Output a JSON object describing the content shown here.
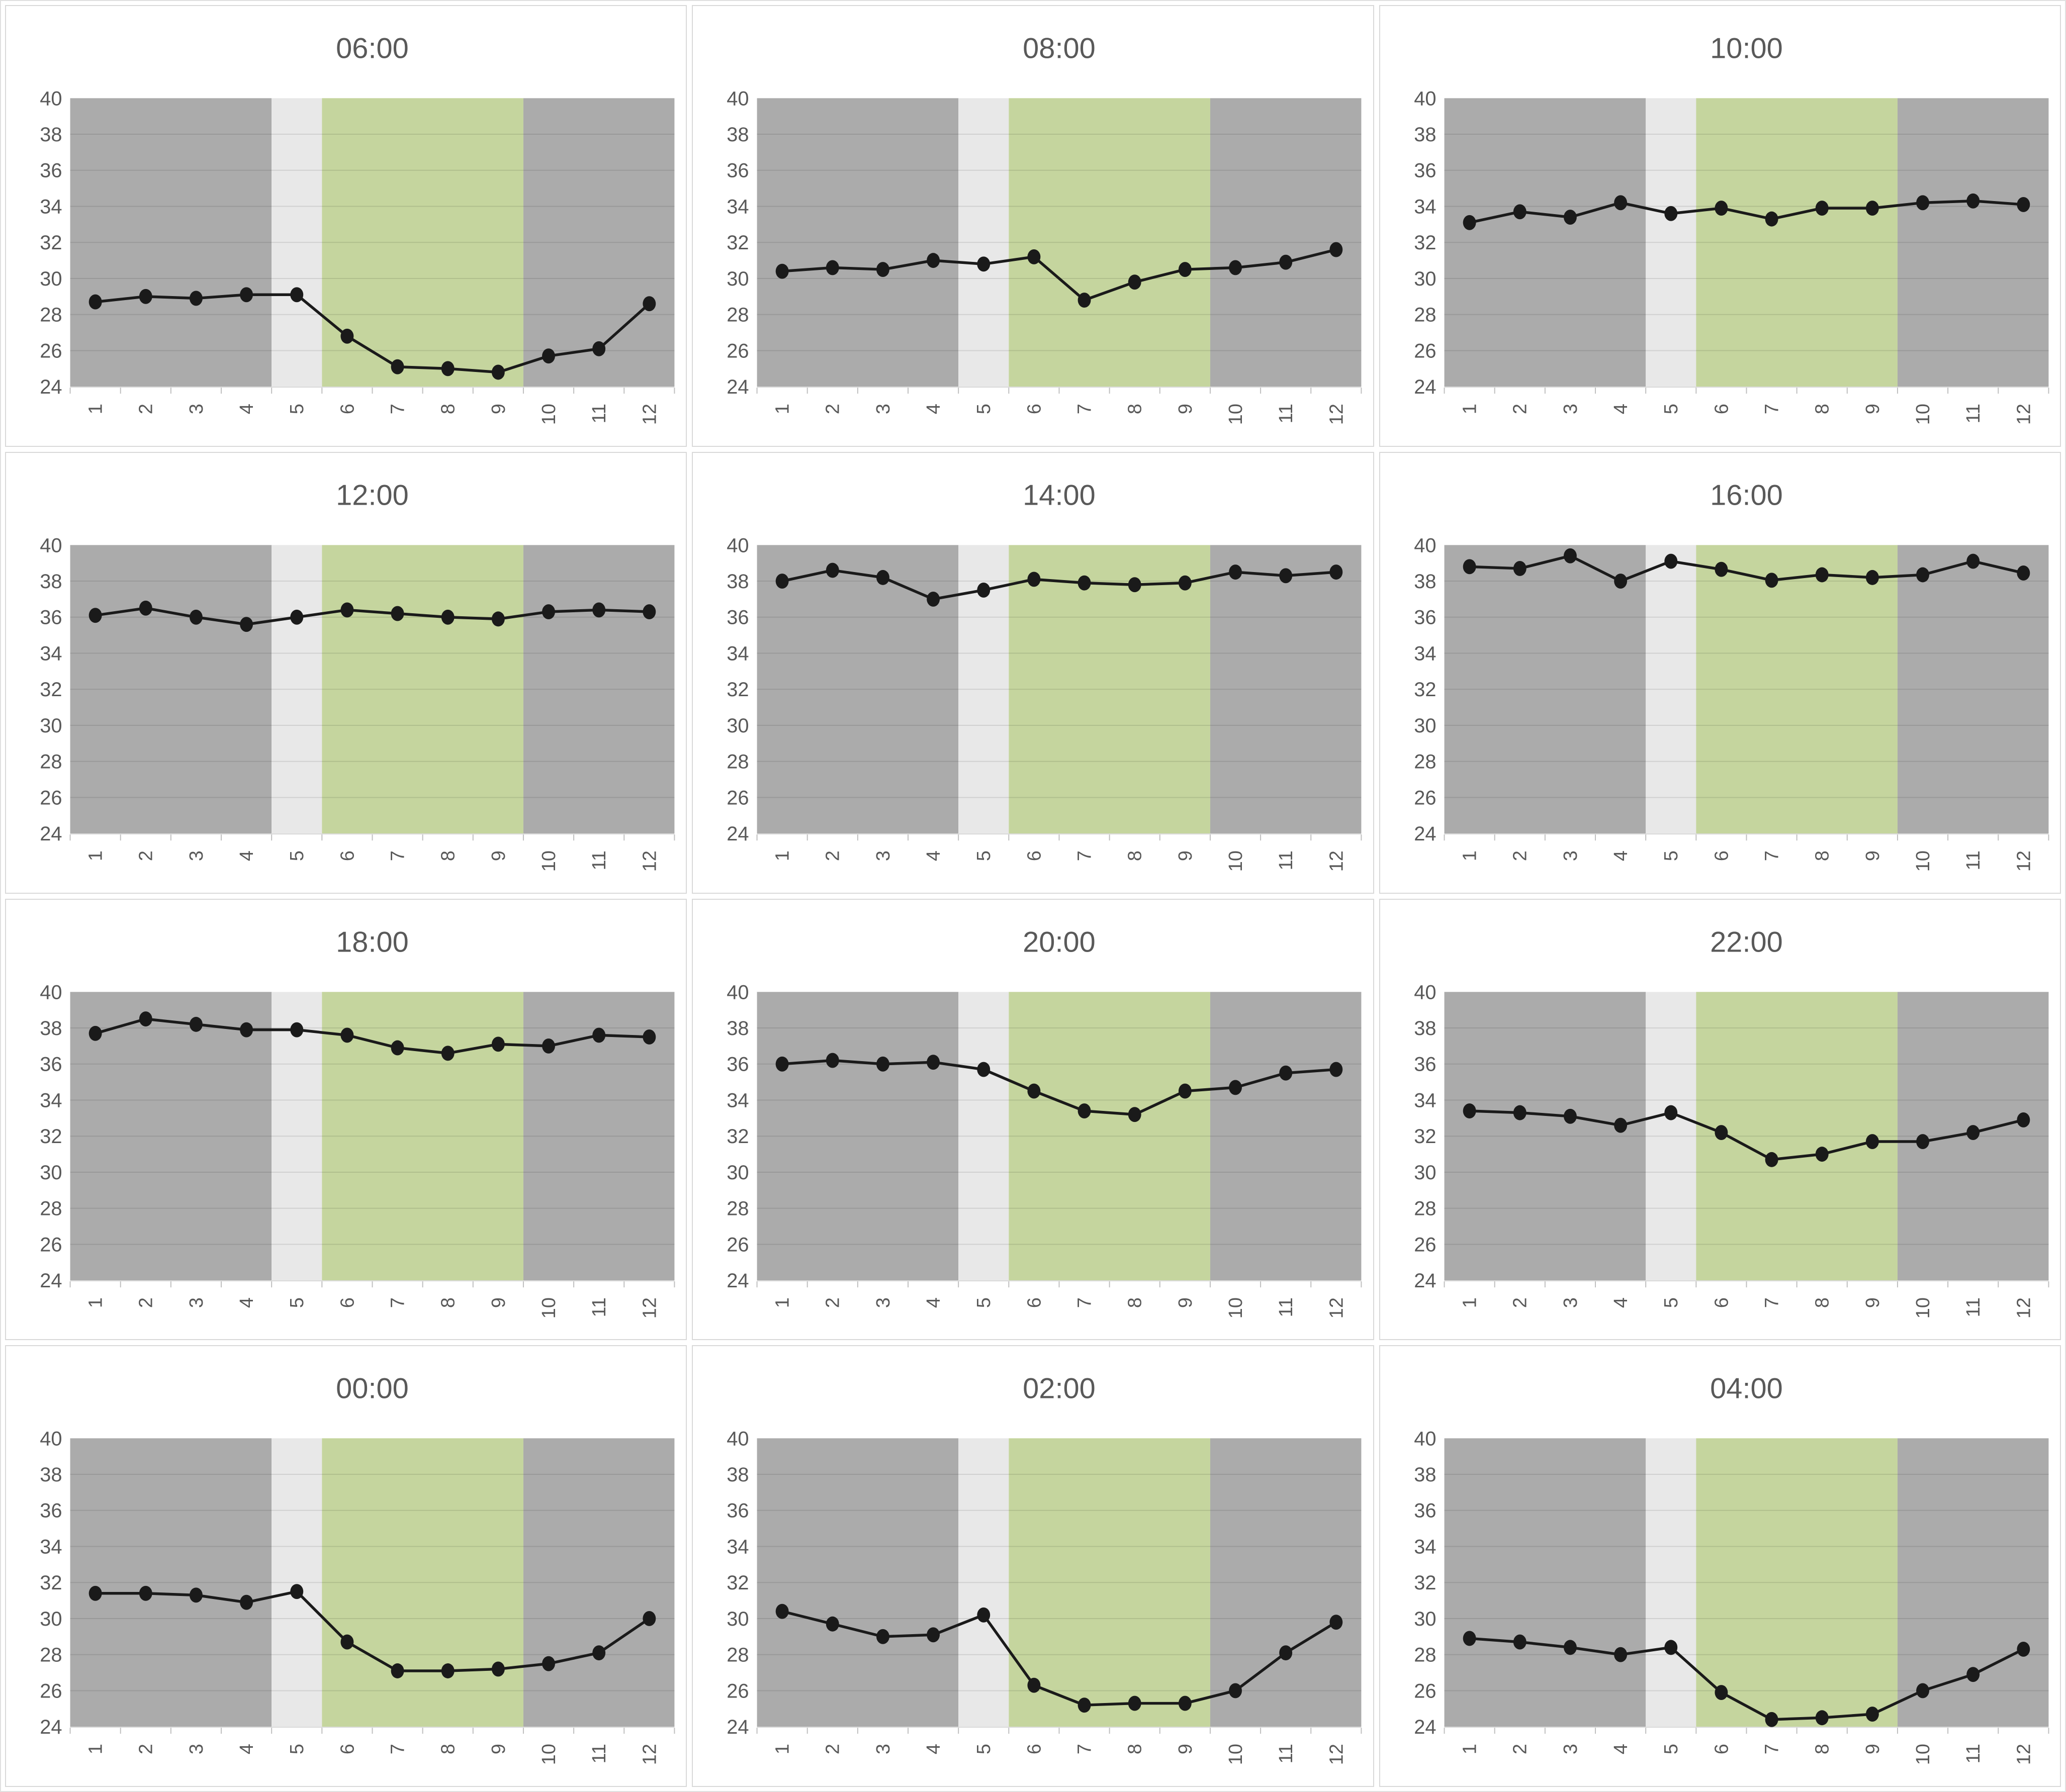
{
  "page": {
    "background": "#ffffff",
    "grid_rows": 4,
    "grid_cols": 3
  },
  "style": {
    "band_gray": "#ababab",
    "band_light": "#e8e8e8",
    "band_green": "#c5d59e",
    "line_color": "#1a1a1a",
    "marker_color": "#1a1a1a",
    "label_color": "#595959",
    "title_color": "#595959",
    "grid_color": "rgba(0,0,0,0.10)",
    "axis_line_color": "#d9d9d9",
    "axis_tick_color": "#bfbfbf",
    "cell_border": "#d9d9d9"
  },
  "bands": [
    {
      "name": "band-gray-left",
      "from": 0,
      "to": 4,
      "color": "band_gray"
    },
    {
      "name": "band-light",
      "from": 4,
      "to": 5,
      "color": "band_light"
    },
    {
      "name": "band-green",
      "from": 5,
      "to": 9,
      "color": "band_green"
    },
    {
      "name": "band-gray-right",
      "from": 9,
      "to": 12,
      "color": "band_gray"
    }
  ],
  "axes": {
    "x_categories": [
      "1",
      "2",
      "3",
      "4",
      "5",
      "6",
      "7",
      "8",
      "9",
      "10",
      "11",
      "12"
    ],
    "y_min": 24,
    "y_max": 40,
    "y_tick_step": 2,
    "y_tick_labels": [
      "24",
      "26",
      "28",
      "30",
      "32",
      "34",
      "36",
      "38",
      "40"
    ],
    "grid": true,
    "legend": "none"
  },
  "chart_data": [
    {
      "type": "line",
      "title": "06:00",
      "x": [
        1,
        2,
        3,
        4,
        5,
        6,
        7,
        8,
        9,
        10,
        11,
        12
      ],
      "values": [
        28.7,
        29.0,
        28.9,
        29.1,
        29.1,
        26.8,
        25.1,
        25.0,
        24.8,
        25.7,
        26.1,
        28.6
      ],
      "ylim": [
        24,
        40
      ]
    },
    {
      "type": "line",
      "title": "08:00",
      "x": [
        1,
        2,
        3,
        4,
        5,
        6,
        7,
        8,
        9,
        10,
        11,
        12
      ],
      "values": [
        30.4,
        30.6,
        30.5,
        31.0,
        30.8,
        31.2,
        28.8,
        29.8,
        30.5,
        30.6,
        30.9,
        31.6
      ],
      "ylim": [
        24,
        40
      ]
    },
    {
      "type": "line",
      "title": "10:00",
      "x": [
        1,
        2,
        3,
        4,
        5,
        6,
        7,
        8,
        9,
        10,
        11,
        12
      ],
      "values": [
        33.1,
        33.7,
        33.4,
        34.2,
        33.6,
        33.9,
        33.3,
        33.9,
        33.9,
        34.2,
        34.3,
        34.1
      ],
      "ylim": [
        24,
        40
      ]
    },
    {
      "type": "line",
      "title": "12:00",
      "x": [
        1,
        2,
        3,
        4,
        5,
        6,
        7,
        8,
        9,
        10,
        11,
        12
      ],
      "values": [
        36.1,
        36.5,
        36.0,
        35.6,
        36.0,
        36.4,
        36.2,
        36.0,
        35.9,
        36.3,
        36.4,
        36.3
      ],
      "ylim": [
        24,
        40
      ]
    },
    {
      "type": "line",
      "title": "14:00",
      "x": [
        1,
        2,
        3,
        4,
        5,
        6,
        7,
        8,
        9,
        10,
        11,
        12
      ],
      "values": [
        38.0,
        38.6,
        38.2,
        37.0,
        37.5,
        38.1,
        37.9,
        37.8,
        37.9,
        38.5,
        38.3,
        38.5
      ],
      "ylim": [
        24,
        40
      ]
    },
    {
      "type": "line",
      "title": "16:00",
      "x": [
        1,
        2,
        3,
        4,
        5,
        6,
        7,
        8,
        9,
        10,
        11,
        12
      ],
      "values": [
        38.8,
        38.7,
        39.4,
        38.0,
        39.1,
        38.65,
        38.05,
        38.35,
        38.2,
        38.35,
        39.1,
        38.45
      ],
      "ylim": [
        24,
        40
      ]
    },
    {
      "type": "line",
      "title": "18:00",
      "x": [
        1,
        2,
        3,
        4,
        5,
        6,
        7,
        8,
        9,
        10,
        11,
        12
      ],
      "values": [
        37.7,
        38.5,
        38.2,
        37.9,
        37.9,
        37.6,
        36.9,
        36.6,
        37.1,
        37.0,
        37.6,
        37.5
      ],
      "ylim": [
        24,
        40
      ]
    },
    {
      "type": "line",
      "title": "20:00",
      "x": [
        1,
        2,
        3,
        4,
        5,
        6,
        7,
        8,
        9,
        10,
        11,
        12
      ],
      "values": [
        36.0,
        36.2,
        36.0,
        36.1,
        35.7,
        34.5,
        33.4,
        33.2,
        34.5,
        34.7,
        35.5,
        35.7
      ],
      "ylim": [
        24,
        40
      ]
    },
    {
      "type": "line",
      "title": "22:00",
      "x": [
        1,
        2,
        3,
        4,
        5,
        6,
        7,
        8,
        9,
        10,
        11,
        12
      ],
      "values": [
        33.4,
        33.3,
        33.1,
        32.6,
        33.3,
        32.2,
        30.7,
        31.0,
        31.7,
        31.7,
        32.2,
        32.9
      ],
      "ylim": [
        24,
        40
      ]
    },
    {
      "type": "line",
      "title": "00:00",
      "x": [
        1,
        2,
        3,
        4,
        5,
        6,
        7,
        8,
        9,
        10,
        11,
        12
      ],
      "values": [
        31.4,
        31.4,
        31.3,
        30.9,
        31.5,
        28.7,
        27.1,
        27.1,
        27.2,
        27.5,
        28.1,
        30.0
      ],
      "ylim": [
        24,
        40
      ]
    },
    {
      "type": "line",
      "title": "02:00",
      "x": [
        1,
        2,
        3,
        4,
        5,
        6,
        7,
        8,
        9,
        10,
        11,
        12
      ],
      "values": [
        30.4,
        29.7,
        29.0,
        29.1,
        30.2,
        26.3,
        25.2,
        25.3,
        25.3,
        26.0,
        28.1,
        29.8
      ],
      "ylim": [
        24,
        40
      ]
    },
    {
      "type": "line",
      "title": "04:00",
      "x": [
        1,
        2,
        3,
        4,
        5,
        6,
        7,
        8,
        9,
        10,
        11,
        12
      ],
      "values": [
        28.9,
        28.7,
        28.4,
        28.0,
        28.4,
        25.9,
        24.4,
        24.5,
        24.7,
        26.0,
        26.9,
        28.3
      ],
      "ylim": [
        24,
        40
      ]
    }
  ]
}
